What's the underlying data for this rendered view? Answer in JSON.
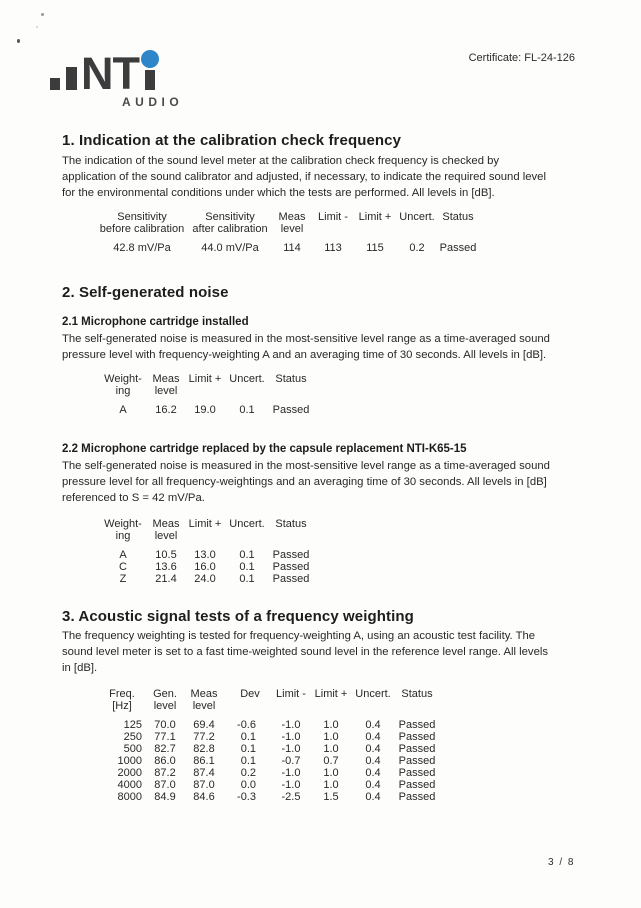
{
  "header": {
    "certificate": "Certificate: FL-24-126",
    "logo_text": "NT",
    "logo_sub": "AUDIO"
  },
  "colors": {
    "logo_dark": "#3c3c3c",
    "logo_dot_blue": "#2e86c8",
    "text": "#262626"
  },
  "section1": {
    "title": "1. Indication at the calibration check frequency",
    "body": "The indication of the sound level meter at the calibration check frequency is checked by\napplication of the sound calibrator and adjusted, if necessary, to indicate the required sound level\nfor the environmental conditions under which the tests are performed. All levels in [dB].",
    "table": {
      "headers": [
        [
          "Sensitivity",
          "before calibration"
        ],
        [
          "Sensitivity",
          "after calibration"
        ],
        [
          "Meas",
          "level"
        ],
        [
          "Limit -"
        ],
        [
          "Limit +"
        ],
        [
          "Uncert."
        ],
        [
          "Status"
        ]
      ],
      "rows": [
        [
          "42.8 mV/Pa",
          "44.0 mV/Pa",
          "114",
          "113",
          "115",
          "0.2",
          "Passed"
        ]
      ]
    }
  },
  "section2": {
    "title": "2. Self-generated noise",
    "sub1": {
      "title": "2.1 Microphone cartridge installed",
      "body": "The self-generated noise is measured in the most-sensitive level range as a time-averaged sound\npressure level with frequency-weighting A and an averaging time of 30 seconds. All levels in [dB].",
      "table": {
        "headers": [
          [
            "Weight-",
            "ing"
          ],
          [
            "Meas",
            "level"
          ],
          [
            "Limit +"
          ],
          [
            "Uncert."
          ],
          [
            "Status"
          ]
        ],
        "rows": [
          [
            "A",
            "16.2",
            "19.0",
            "0.1",
            "Passed"
          ]
        ]
      }
    },
    "sub2": {
      "title": "2.2 Microphone cartridge replaced by the capsule replacement NTI-K65-15",
      "body": "The self-generated noise is measured in the most-sensitive level range as a time-averaged sound\npressure level for all frequency-weightings and an averaging time of 30 seconds. All levels in [dB]\nreferenced to S = 42 mV/Pa.",
      "table": {
        "headers": [
          [
            "Weight-",
            "ing"
          ],
          [
            "Meas",
            "level"
          ],
          [
            "Limit +"
          ],
          [
            "Uncert."
          ],
          [
            "Status"
          ]
        ],
        "rows": [
          [
            "A",
            "10.5",
            "13.0",
            "0.1",
            "Passed"
          ],
          [
            "C",
            "13.6",
            "16.0",
            "0.1",
            "Passed"
          ],
          [
            "Z",
            "21.4",
            "24.0",
            "0.1",
            "Passed"
          ]
        ]
      }
    }
  },
  "section3": {
    "title": "3. Acoustic signal tests of a frequency weighting",
    "body": "The frequency weighting is tested for frequency-weighting A, using an acoustic test facility. The\nsound level meter is set to a fast time-weighted sound level in the reference level range. All levels\nin [dB].",
    "table": {
      "headers": [
        [
          "Freq.",
          "[Hz]"
        ],
        [
          "Gen.",
          "level"
        ],
        [
          "Meas",
          "level"
        ],
        [
          "Dev"
        ],
        [
          "Limit -"
        ],
        [
          "Limit +"
        ],
        [
          "Uncert."
        ],
        [
          "Status"
        ]
      ],
      "rows": [
        [
          "125",
          "70.0",
          "69.4",
          "-0.6",
          "-1.0",
          "1.0",
          "0.4",
          "Passed"
        ],
        [
          "250",
          "77.1",
          "77.2",
          "0.1",
          "-1.0",
          "1.0",
          "0.4",
          "Passed"
        ],
        [
          "500",
          "82.7",
          "82.8",
          "0.1",
          "-1.0",
          "1.0",
          "0.4",
          "Passed"
        ],
        [
          "1000",
          "86.0",
          "86.1",
          "0.1",
          "-0.7",
          "0.7",
          "0.4",
          "Passed"
        ],
        [
          "2000",
          "87.2",
          "87.4",
          "0.2",
          "-1.0",
          "1.0",
          "0.4",
          "Passed"
        ],
        [
          "4000",
          "87.0",
          "87.0",
          "0.0",
          "-1.0",
          "1.0",
          "0.4",
          "Passed"
        ],
        [
          "8000",
          "84.9",
          "84.6",
          "-0.3",
          "-2.5",
          "1.5",
          "0.4",
          "Passed"
        ]
      ]
    }
  },
  "footer": {
    "page_number": "3 / 8"
  }
}
